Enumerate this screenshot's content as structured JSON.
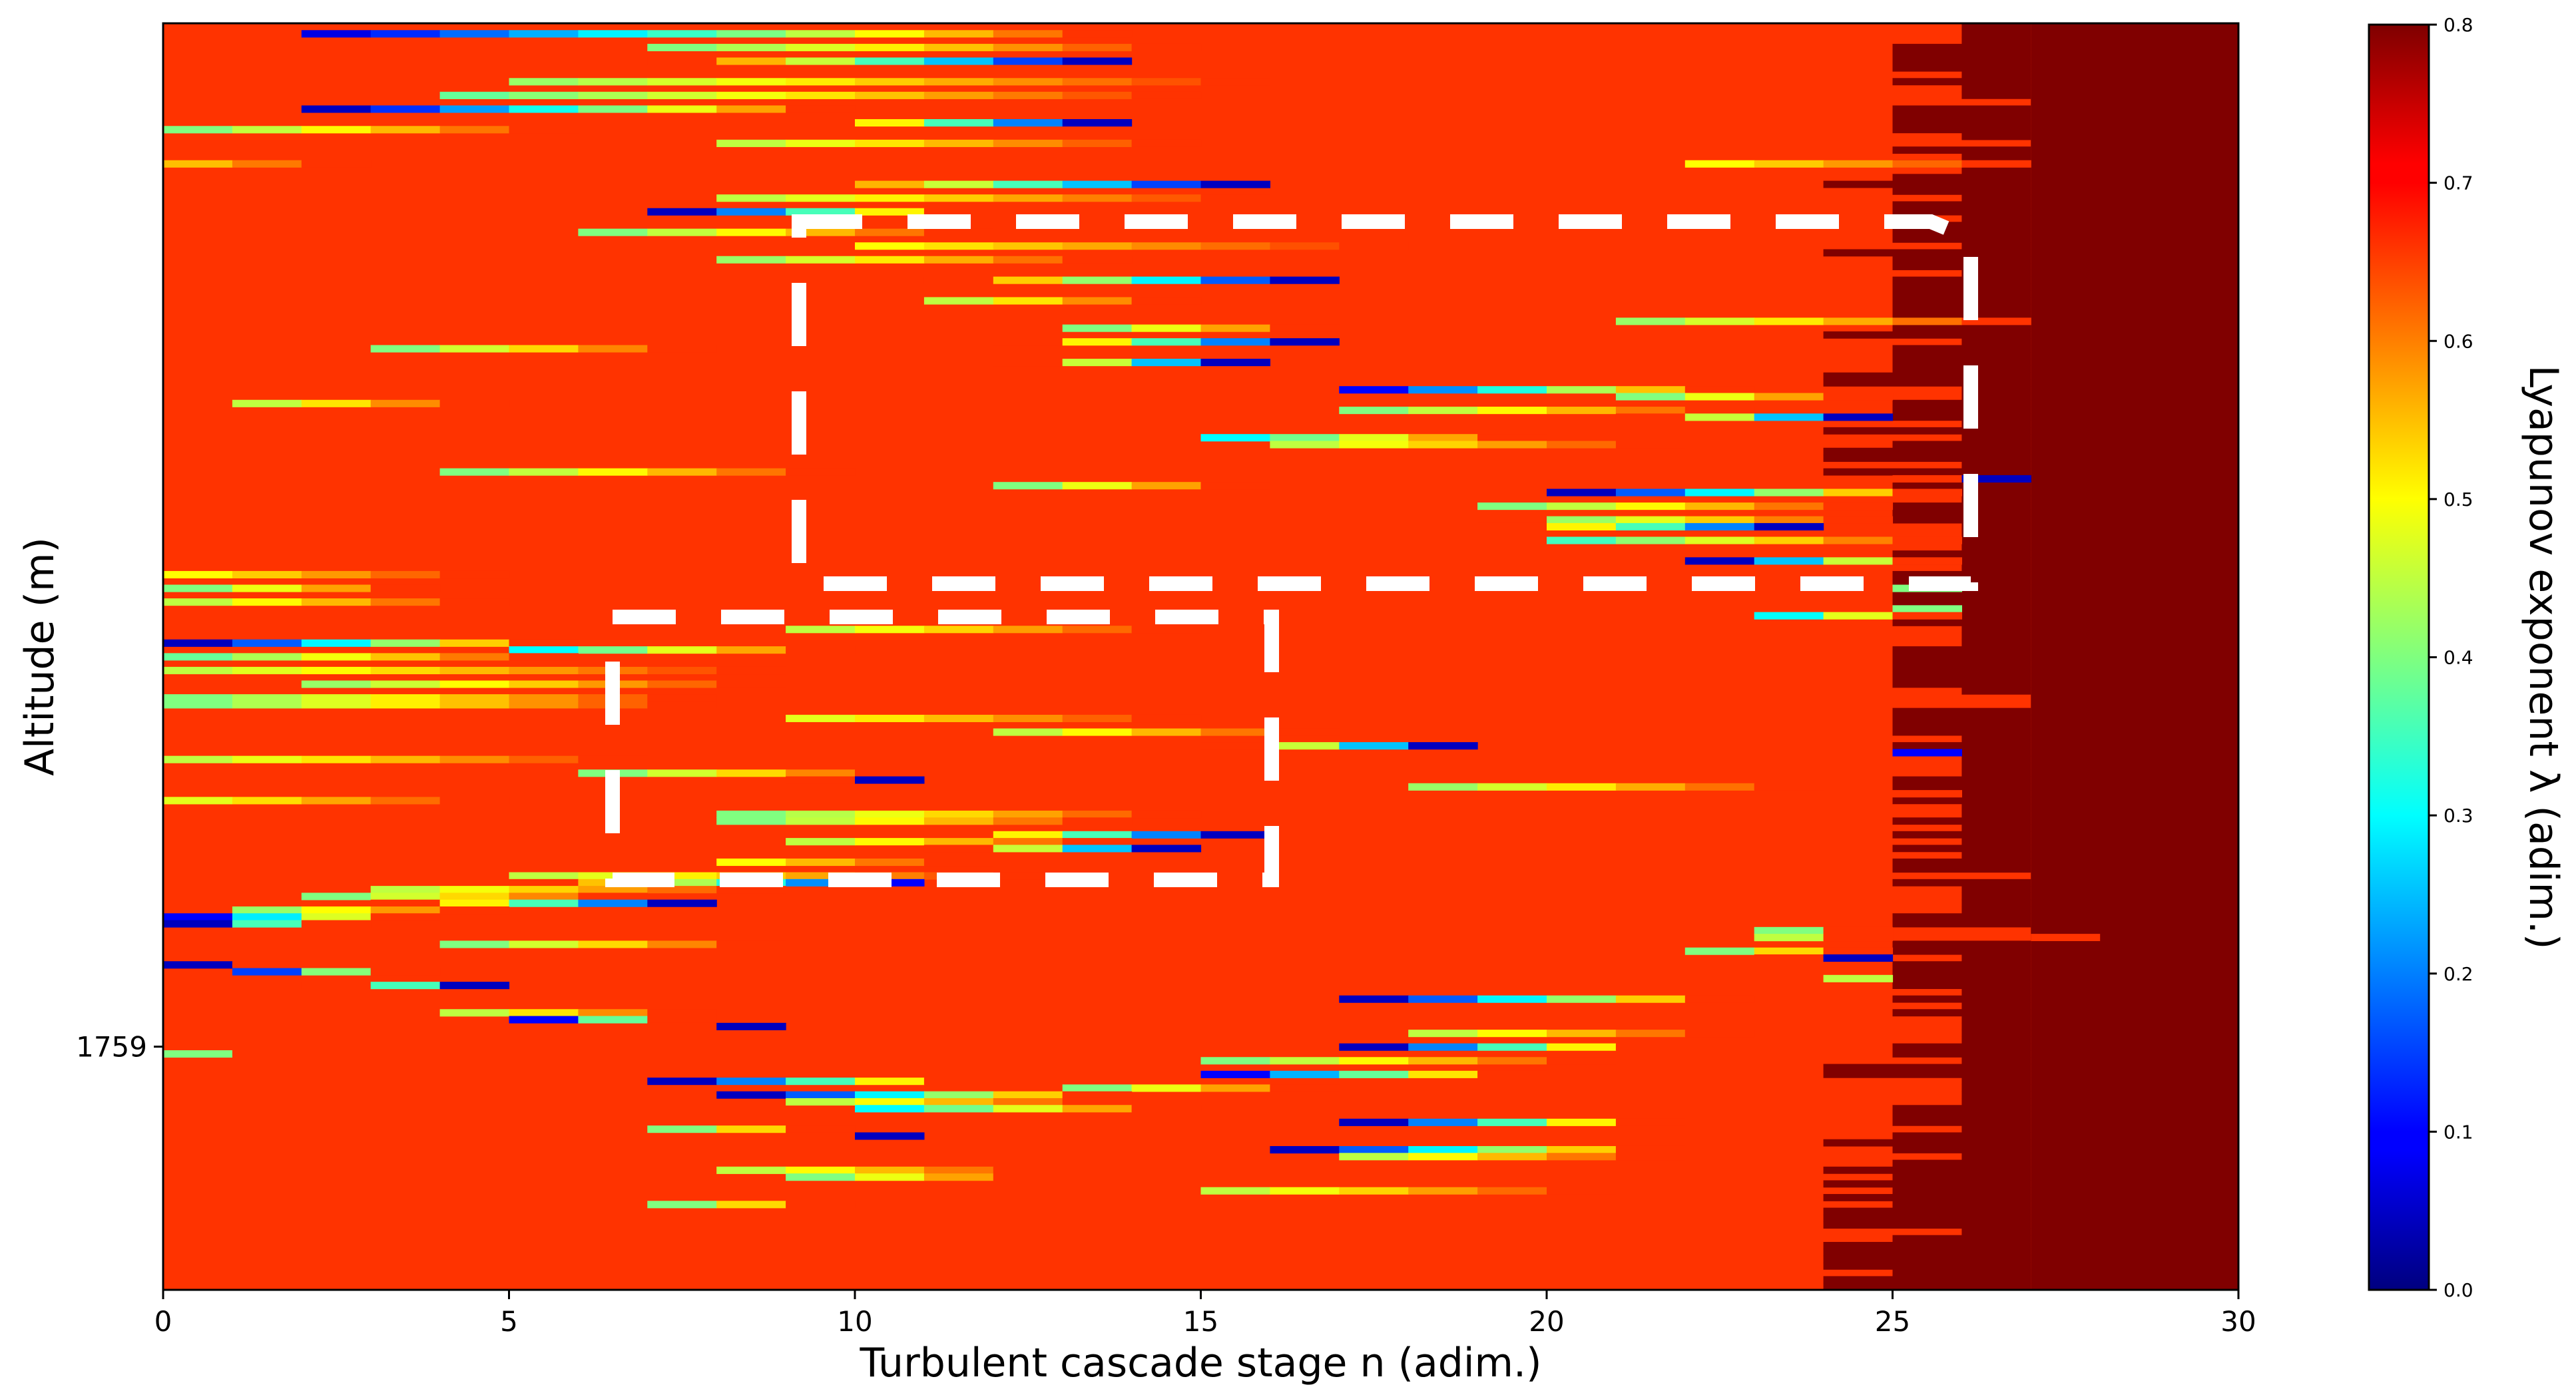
{
  "chart_data": {
    "type": "heatmap",
    "title": "",
    "xlabel": "Turbulent cascade stage n (adim.)",
    "ylabel": "Altitude (m)",
    "xlim": [
      0,
      30
    ],
    "x_ticks": [
      "0",
      "5",
      "10",
      "15",
      "20",
      "25",
      "30"
    ],
    "y_ticks": [
      "1759"
    ],
    "y_tick_value_fraction": 0.192,
    "colorbar": {
      "label": "Lyapunov exponent λ (adim.)",
      "colormap": "jet",
      "range": [
        0.0,
        0.8
      ],
      "ticks": [
        "0.0",
        "0.1",
        "0.2",
        "0.3",
        "0.4",
        "0.5",
        "0.6",
        "0.7",
        "0.8"
      ]
    },
    "background_value": 0.66,
    "saturated_value": 0.8,
    "saturation_onset_stage": 27,
    "near_saturation_stage_range": [
      25,
      27
    ],
    "rows": 185,
    "row_ends": [
      26,
      26,
      26,
      25,
      25,
      25,
      25,
      26,
      25,
      26,
      26,
      27,
      25,
      25,
      25,
      25,
      26,
      27,
      25,
      26,
      25,
      26,
      25,
      24,
      25,
      26,
      25,
      25,
      26,
      25,
      25,
      25,
      26,
      24,
      25,
      25,
      26,
      25,
      25,
      25,
      25,
      25,
      25,
      25,
      25,
      24,
      26,
      25,
      25,
      25,
      25,
      24,
      24,
      26,
      26,
      25,
      25,
      25,
      26,
      24,
      26,
      25,
      24,
      24,
      26,
      24,
      25,
      25,
      26,
      26,
      25,
      25,
      25,
      26,
      26,
      26,
      26,
      25,
      25,
      26,
      25,
      25,
      26,
      25,
      25,
      25,
      26,
      25,
      26,
      26,
      26,
      25,
      25,
      25,
      25,
      25,
      25,
      26,
      27,
      27,
      25,
      25,
      25,
      25,
      26,
      25,
      25,
      26,
      26,
      26,
      25,
      25,
      25,
      25,
      26,
      26,
      25,
      26,
      25,
      26,
      25,
      26,
      25,
      25,
      27,
      25,
      26,
      26,
      26,
      26,
      25,
      25,
      27,
      28,
      25,
      25,
      26,
      25,
      25,
      25,
      25,
      26,
      25,
      26,
      25,
      26,
      26,
      26,
      26,
      25,
      25,
      26,
      24,
      24,
      26,
      26,
      26,
      26,
      25,
      25,
      25,
      26,
      25,
      24,
      25,
      26,
      25,
      24,
      25,
      24,
      25,
      24,
      25,
      24,
      24,
      24,
      26,
      25,
      24,
      24,
      24,
      24,
      25,
      24,
      24
    ],
    "structures": [
      {
        "row": 1,
        "start": 2,
        "len": 12,
        "min": 0.08,
        "dir": 1
      },
      {
        "row": 3,
        "start": 7,
        "len": 8,
        "min": 0.4,
        "dir": 1
      },
      {
        "row": 5,
        "start": 7,
        "len": 7,
        "min": 0.05,
        "dir": -1
      },
      {
        "row": 8,
        "start": 5,
        "len": 11,
        "min": 0.42,
        "dir": 1
      },
      {
        "row": 10,
        "start": 4,
        "len": 11,
        "min": 0.38,
        "dir": 1
      },
      {
        "row": 12,
        "start": 2,
        "len": 8,
        "min": 0.05,
        "dir": 1
      },
      {
        "row": 14,
        "start": 9,
        "len": 5,
        "min": 0.05,
        "dir": -1
      },
      {
        "row": 15,
        "start": 0,
        "len": 6,
        "min": 0.4,
        "dir": 1
      },
      {
        "row": 17,
        "start": 8,
        "len": 7,
        "min": 0.45,
        "dir": 1
      },
      {
        "row": 20,
        "start": 0,
        "len": 3,
        "min": 0.55,
        "dir": 1
      },
      {
        "row": 20,
        "start": 22,
        "len": 5,
        "min": 0.5,
        "dir": 1
      },
      {
        "row": 23,
        "start": 9,
        "len": 7,
        "min": 0.05,
        "dir": -1
      },
      {
        "row": 25,
        "start": 8,
        "len": 8,
        "min": 0.45,
        "dir": 1
      },
      {
        "row": 27,
        "start": 7,
        "len": 5,
        "min": 0.05,
        "dir": 1
      },
      {
        "row": 30,
        "start": 6,
        "len": 6,
        "min": 0.4,
        "dir": 1
      },
      {
        "row": 32,
        "start": 10,
        "len": 8,
        "min": 0.5,
        "dir": 1
      },
      {
        "row": 34,
        "start": 8,
        "len": 6,
        "min": 0.42,
        "dir": 1
      },
      {
        "row": 37,
        "start": 11,
        "len": 6,
        "min": 0.05,
        "dir": -1
      },
      {
        "row": 40,
        "start": 11,
        "len": 4,
        "min": 0.45,
        "dir": 1
      },
      {
        "row": 43,
        "start": 21,
        "len": 6,
        "min": 0.42,
        "dir": 1
      },
      {
        "row": 44,
        "start": 13,
        "len": 4,
        "min": 0.4,
        "dir": 1
      },
      {
        "row": 46,
        "start": 12,
        "len": 5,
        "min": 0.05,
        "dir": -1
      },
      {
        "row": 47,
        "start": 3,
        "len": 5,
        "min": 0.4,
        "dir": 1
      },
      {
        "row": 49,
        "start": 12,
        "len": 4,
        "min": 0.05,
        "dir": -1
      },
      {
        "row": 53,
        "start": 17,
        "len": 6,
        "min": 0.1,
        "dir": 1
      },
      {
        "row": 54,
        "start": 21,
        "len": 4,
        "min": 0.4,
        "dir": 1
      },
      {
        "row": 55,
        "start": 1,
        "len": 4,
        "min": 0.45,
        "dir": 1
      },
      {
        "row": 56,
        "start": 17,
        "len": 6,
        "min": 0.4,
        "dir": 1
      },
      {
        "row": 57,
        "start": 21,
        "len": 4,
        "min": 0.05,
        "dir": -1
      },
      {
        "row": 60,
        "start": 15,
        "len": 5,
        "min": 0.3,
        "dir": 1
      },
      {
        "row": 61,
        "start": 16,
        "len": 6,
        "min": 0.45,
        "dir": 1
      },
      {
        "row": 65,
        "start": 4,
        "len": 6,
        "min": 0.4,
        "dir": 1
      },
      {
        "row": 66,
        "start": 25,
        "len": 2,
        "min": 0.05,
        "dir": -1
      },
      {
        "row": 67,
        "start": 12,
        "len": 4,
        "min": 0.4,
        "dir": 1
      },
      {
        "row": 68,
        "start": 20,
        "len": 6,
        "min": 0.05,
        "dir": 1
      },
      {
        "row": 70,
        "start": 19,
        "len": 6,
        "min": 0.4,
        "dir": 1
      },
      {
        "row": 72,
        "start": 20,
        "len": 5,
        "min": 0.42,
        "dir": 1
      },
      {
        "row": 73,
        "start": 19,
        "len": 5,
        "min": 0.05,
        "dir": -1
      },
      {
        "row": 75,
        "start": 20,
        "len": 6,
        "min": 0.35,
        "dir": 1
      },
      {
        "row": 78,
        "start": 22,
        "len": 4,
        "min": 0.05,
        "dir": 1
      },
      {
        "row": 80,
        "start": 0,
        "len": 5,
        "min": 0.5,
        "dir": 1
      },
      {
        "row": 82,
        "start": 0,
        "len": 4,
        "min": 0.4,
        "dir": 1
      },
      {
        "row": 82,
        "start": 25,
        "len": 1,
        "min": 0.4,
        "dir": 1
      },
      {
        "row": 84,
        "start": 0,
        "len": 5,
        "min": 0.45,
        "dir": 1
      },
      {
        "row": 85,
        "start": 25,
        "len": 1,
        "min": 0.4,
        "dir": 1
      },
      {
        "row": 86,
        "start": 23,
        "len": 3,
        "min": 0.3,
        "dir": 1
      },
      {
        "row": 88,
        "start": 9,
        "len": 6,
        "min": 0.45,
        "dir": 1
      },
      {
        "row": 90,
        "start": 0,
        "len": 6,
        "min": 0.05,
        "dir": 1
      },
      {
        "row": 91,
        "start": 5,
        "len": 5,
        "min": 0.3,
        "dir": 1
      },
      {
        "row": 92,
        "start": 0,
        "len": 6,
        "min": 0.38,
        "dir": 1
      },
      {
        "row": 94,
        "start": 0,
        "len": 9,
        "min": 0.45,
        "dir": 1
      },
      {
        "row": 96,
        "start": 2,
        "len": 7,
        "min": 0.42,
        "dir": 1
      },
      {
        "row": 98,
        "start": 0,
        "len": 8,
        "min": 0.4,
        "dir": 1
      },
      {
        "row": 99,
        "start": 0,
        "len": 8,
        "min": 0.4,
        "dir": 1
      },
      {
        "row": 101,
        "start": 9,
        "len": 6,
        "min": 0.48,
        "dir": 1
      },
      {
        "row": 103,
        "start": 12,
        "len": 5,
        "min": 0.45,
        "dir": 1
      },
      {
        "row": 105,
        "start": 15,
        "len": 4,
        "min": 0.05,
        "dir": -1
      },
      {
        "row": 106,
        "start": 25,
        "len": 1,
        "min": 0.1,
        "dir": 1
      },
      {
        "row": 107,
        "start": 0,
        "len": 7,
        "min": 0.45,
        "dir": 1
      },
      {
        "row": 109,
        "start": 6,
        "len": 5,
        "min": 0.4,
        "dir": 1
      },
      {
        "row": 110,
        "start": 9,
        "len": 2,
        "min": 0.05,
        "dir": -1
      },
      {
        "row": 111,
        "start": 18,
        "len": 6,
        "min": 0.42,
        "dir": 1
      },
      {
        "row": 112,
        "start": 25,
        "len": 1,
        "min": 0.05,
        "dir": -1
      },
      {
        "row": 113,
        "start": 0,
        "len": 5,
        "min": 0.48,
        "dir": 1
      },
      {
        "row": 115,
        "start": 8,
        "len": 7,
        "min": 0.4,
        "dir": 1
      },
      {
        "row": 116,
        "start": 8,
        "len": 6,
        "min": 0.4,
        "dir": 1
      },
      {
        "row": 118,
        "start": 11,
        "len": 5,
        "min": 0.05,
        "dir": -1
      },
      {
        "row": 119,
        "start": 9,
        "len": 5,
        "min": 0.45,
        "dir": 1
      },
      {
        "row": 120,
        "start": 11,
        "len": 4,
        "min": 0.05,
        "dir": -1
      },
      {
        "row": 122,
        "start": 8,
        "len": 4,
        "min": 0.5,
        "dir": 1
      },
      {
        "row": 124,
        "start": 5,
        "len": 8,
        "min": 0.45,
        "dir": 1
      },
      {
        "row": 125,
        "start": 5,
        "len": 6,
        "min": 0.1,
        "dir": -1
      },
      {
        "row": 126,
        "start": 3,
        "len": 6,
        "min": 0.45,
        "dir": 1
      },
      {
        "row": 127,
        "start": 2,
        "len": 5,
        "min": 0.4,
        "dir": 1
      },
      {
        "row": 128,
        "start": 3,
        "len": 5,
        "min": 0.05,
        "dir": -1
      },
      {
        "row": 129,
        "start": 1,
        "len": 4,
        "min": 0.42,
        "dir": 1
      },
      {
        "row": 130,
        "start": 0,
        "len": 4,
        "min": 0.1,
        "dir": 1
      },
      {
        "row": 131,
        "start": 0,
        "len": 3,
        "min": 0.05,
        "dir": 1
      },
      {
        "row": 132,
        "start": 23,
        "len": 2,
        "min": 0.4,
        "dir": 1
      },
      {
        "row": 133,
        "start": 23,
        "len": 2,
        "min": 0.45,
        "dir": 1
      },
      {
        "row": 134,
        "start": 4,
        "len": 5,
        "min": 0.4,
        "dir": 1
      },
      {
        "row": 135,
        "start": 22,
        "len": 3,
        "min": 0.4,
        "dir": 1
      },
      {
        "row": 136,
        "start": 23,
        "len": 2,
        "min": 0.05,
        "dir": -1
      },
      {
        "row": 137,
        "start": 0,
        "len": 2,
        "min": 0.05,
        "dir": 1
      },
      {
        "row": 138,
        "start": 1,
        "len": 3,
        "min": 0.15,
        "dir": 1
      },
      {
        "row": 139,
        "start": 24,
        "len": 1,
        "min": 0.45,
        "dir": 1
      },
      {
        "row": 140,
        "start": 2,
        "len": 3,
        "min": 0.05,
        "dir": -1
      },
      {
        "row": 142,
        "start": 17,
        "len": 6,
        "min": 0.05,
        "dir": 1
      },
      {
        "row": 144,
        "start": 4,
        "len": 4,
        "min": 0.45,
        "dir": 1
      },
      {
        "row": 145,
        "start": 5,
        "len": 3,
        "min": 0.1,
        "dir": 1
      },
      {
        "row": 146,
        "start": 7,
        "len": 2,
        "min": 0.05,
        "dir": -1
      },
      {
        "row": 147,
        "start": 18,
        "len": 5,
        "min": 0.45,
        "dir": 1
      },
      {
        "row": 149,
        "start": 17,
        "len": 5,
        "min": 0.05,
        "dir": 1
      },
      {
        "row": 150,
        "start": 0,
        "len": 2,
        "min": 0.4,
        "dir": 1
      },
      {
        "row": 151,
        "start": 15,
        "len": 6,
        "min": 0.4,
        "dir": 1
      },
      {
        "row": 153,
        "start": 15,
        "len": 5,
        "min": 0.1,
        "dir": 1
      },
      {
        "row": 154,
        "start": 7,
        "len": 5,
        "min": 0.05,
        "dir": 1
      },
      {
        "row": 155,
        "start": 13,
        "len": 4,
        "min": 0.4,
        "dir": 1
      },
      {
        "row": 156,
        "start": 8,
        "len": 6,
        "min": 0.05,
        "dir": 1
      },
      {
        "row": 157,
        "start": 9,
        "len": 5,
        "min": 0.45,
        "dir": 1
      },
      {
        "row": 158,
        "start": 10,
        "len": 5,
        "min": 0.3,
        "dir": 1
      },
      {
        "row": 160,
        "start": 17,
        "len": 5,
        "min": 0.05,
        "dir": 1
      },
      {
        "row": 161,
        "start": 7,
        "len": 3,
        "min": 0.4,
        "dir": 1
      },
      {
        "row": 162,
        "start": 9,
        "len": 2,
        "min": 0.05,
        "dir": -1
      },
      {
        "row": 164,
        "start": 16,
        "len": 6,
        "min": 0.05,
        "dir": 1
      },
      {
        "row": 165,
        "start": 17,
        "len": 5,
        "min": 0.45,
        "dir": 1
      },
      {
        "row": 167,
        "start": 8,
        "len": 5,
        "min": 0.45,
        "dir": 1
      },
      {
        "row": 168,
        "start": 9,
        "len": 4,
        "min": 0.4,
        "dir": 1
      },
      {
        "row": 170,
        "start": 15,
        "len": 6,
        "min": 0.45,
        "dir": 1
      },
      {
        "row": 172,
        "start": 7,
        "len": 3,
        "min": 0.4,
        "dir": 1
      }
    ]
  }
}
